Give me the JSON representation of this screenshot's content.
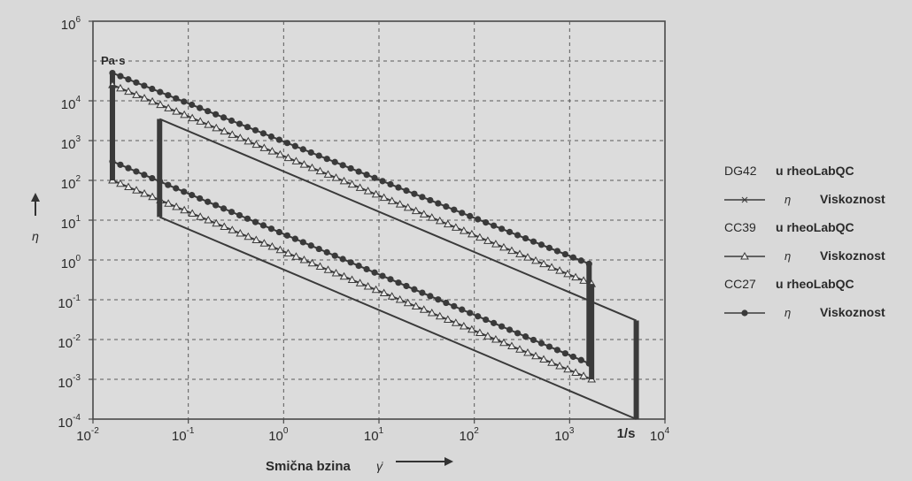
{
  "chart_data": {
    "type": "line",
    "title": "",
    "xlabel": "Smična bzina",
    "xlabel_symbol": "γ̇",
    "ylabel": "η",
    "x_unit": "1/s",
    "y_unit": "Pa·s",
    "xscale": "log",
    "yscale": "log",
    "xlim": [
      0.01,
      10000
    ],
    "ylim": [
      0.0001,
      1000000
    ],
    "grid": true,
    "legend_position": "right",
    "x_ticks": [
      {
        "base": "10",
        "exp": "-2",
        "value": 0.01
      },
      {
        "base": "10",
        "exp": "-1",
        "value": 0.1
      },
      {
        "base": "10",
        "exp": "0",
        "value": 1
      },
      {
        "base": "10",
        "exp": "1",
        "value": 10
      },
      {
        "base": "10",
        "exp": "2",
        "value": 100
      },
      {
        "base": "10",
        "exp": "3",
        "value": 1000
      },
      {
        "base": "10",
        "exp": "4",
        "value": 10000
      }
    ],
    "y_ticks": [
      {
        "base": "10",
        "exp": "-4",
        "value": 0.0001
      },
      {
        "base": "10",
        "exp": "-3",
        "value": 0.001
      },
      {
        "base": "10",
        "exp": "-2",
        "value": 0.01
      },
      {
        "base": "10",
        "exp": "-1",
        "value": 0.1
      },
      {
        "base": "10",
        "exp": "0",
        "value": 1
      },
      {
        "base": "10",
        "exp": "1",
        "value": 10
      },
      {
        "base": "10",
        "exp": "2",
        "value": 100
      },
      {
        "base": "10",
        "exp": "3",
        "value": 1000
      },
      {
        "base": "10",
        "exp": "4",
        "value": 10000
      },
      {
        "base": "10",
        "exp": "6",
        "value": 1000000
      }
    ],
    "legend": [
      {
        "device": "DG42",
        "instrument": "u rheoLabQC",
        "symbol": "η",
        "label": "Viskoznost",
        "marker": "cross"
      },
      {
        "device": "CC39",
        "instrument": "u rheoLabQC",
        "symbol": "η",
        "label": "Viskoznost",
        "marker": "triangle"
      },
      {
        "device": "CC27",
        "instrument": "u rheoLabQC",
        "symbol": "η",
        "label": "Viskoznost",
        "marker": "circle"
      }
    ],
    "series": [
      {
        "name": "CC27",
        "marker": "circle",
        "segments": [
          {
            "x": [
              0.016,
              1600
            ],
            "y": [
              50000,
              0.8
            ]
          },
          {
            "x": [
              0.016,
              1600
            ],
            "y": [
              300,
              0.0025
            ]
          }
        ]
      },
      {
        "name": "CC39",
        "marker": "triangle",
        "segments": [
          {
            "x": [
              0.016,
              1700
            ],
            "y": [
              25000,
              0.25
            ]
          },
          {
            "x": [
              0.016,
              1700
            ],
            "y": [
              100,
              0.001
            ]
          }
        ]
      },
      {
        "name": "DG42",
        "marker": "cross",
        "segments": [
          {
            "x": [
              0.05,
              5000
            ],
            "y": [
              3500,
              0.03
            ]
          },
          {
            "x": [
              0.05,
              5000
            ],
            "y": [
              12,
              0.0001
            ]
          }
        ]
      }
    ]
  }
}
